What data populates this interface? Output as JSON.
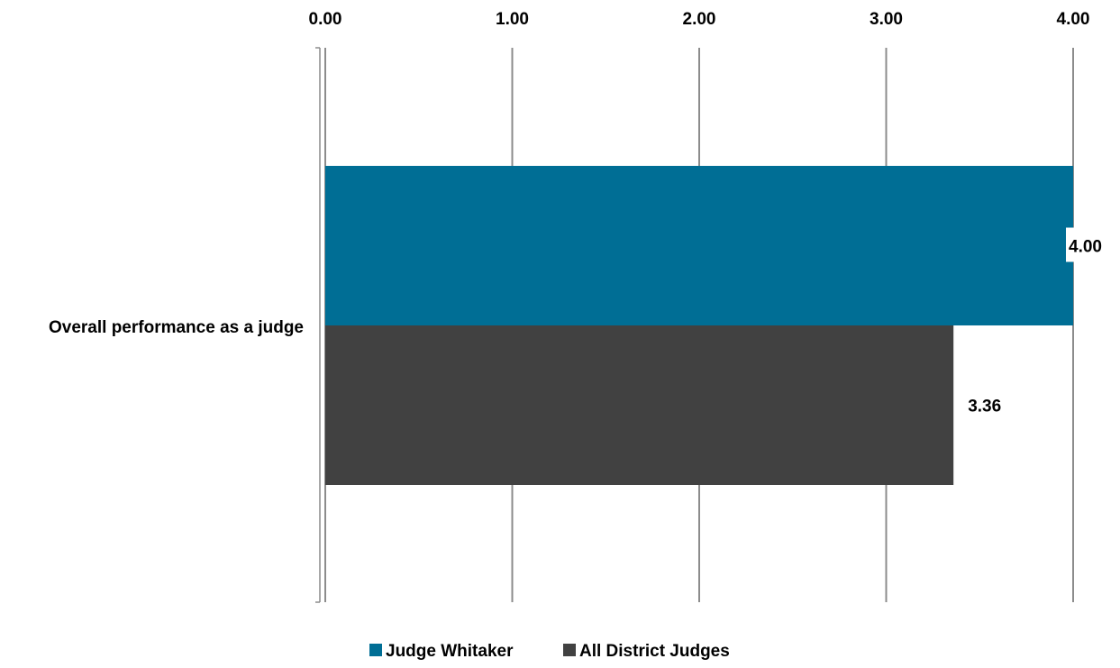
{
  "chart_data": {
    "type": "bar",
    "orientation": "horizontal",
    "categories": [
      "Overall performance as a judge"
    ],
    "series": [
      {
        "name": "Judge Whitaker",
        "values": [
          4.0
        ],
        "color": "#006e95"
      },
      {
        "name": "All District Judges",
        "values": [
          3.36
        ],
        "color": "#414141"
      }
    ],
    "xlim": [
      0,
      4
    ],
    "xticks": [
      "0.00",
      "1.00",
      "2.00",
      "3.00",
      "4.00"
    ],
    "x_axis_position": "top",
    "data_labels": [
      "4.00",
      "3.36"
    ],
    "grid": true,
    "legend_position": "bottom",
    "title": "",
    "xlabel": "",
    "ylabel": ""
  }
}
